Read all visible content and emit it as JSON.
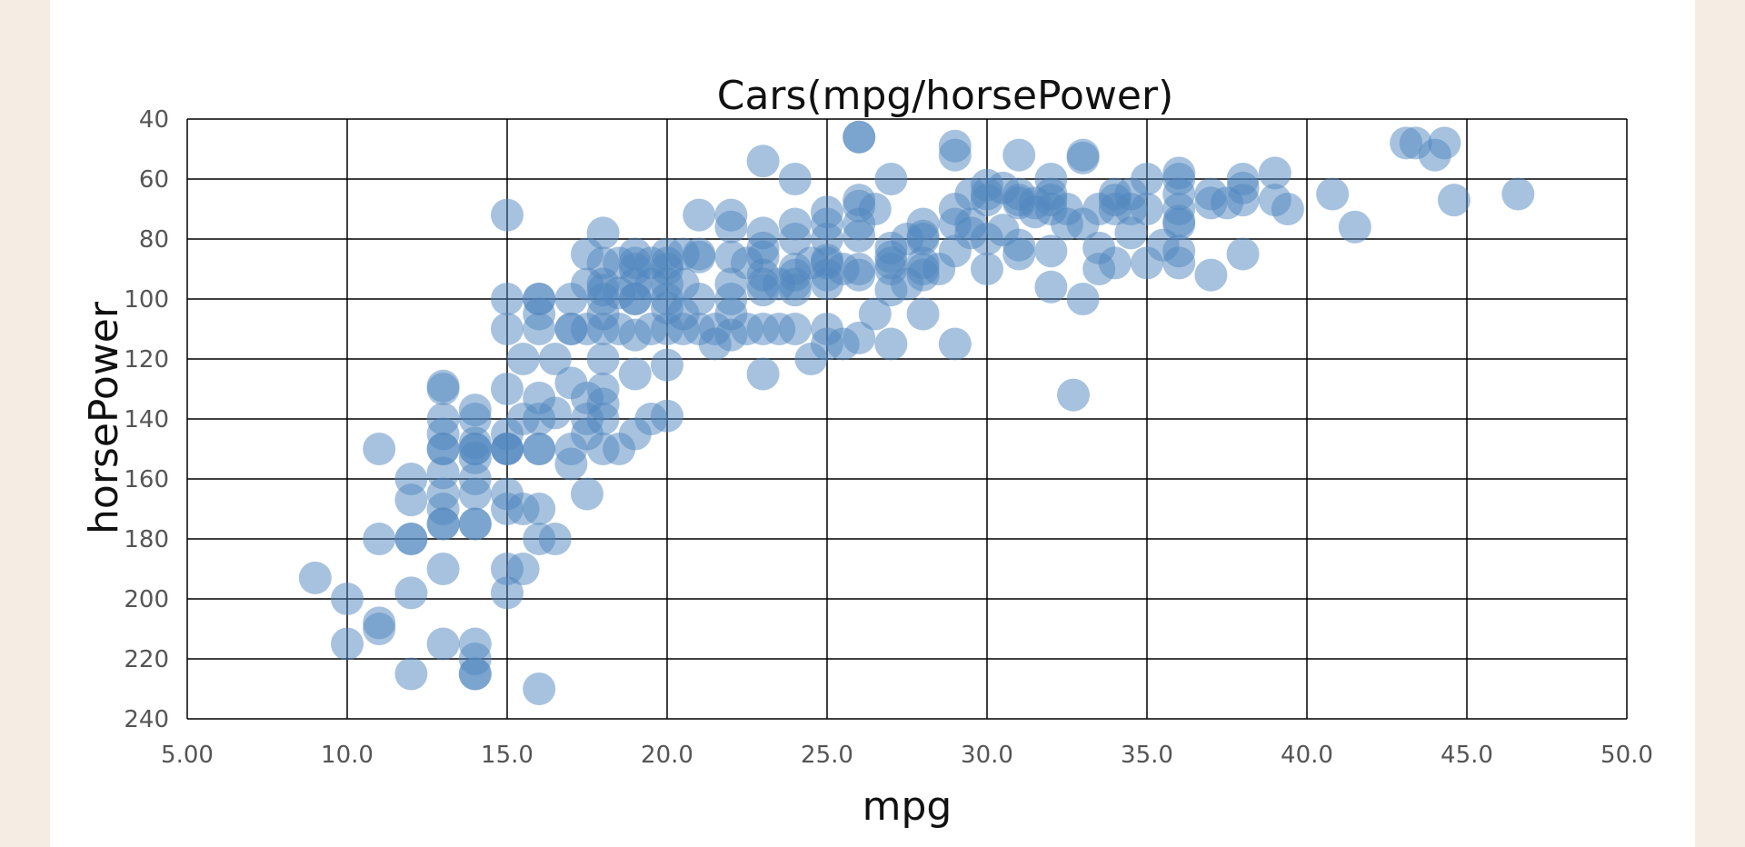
{
  "colors": {
    "background": "#f5ede3",
    "panel": "#ffffff",
    "point": "#4f86bd",
    "grid": "#000000"
  },
  "chart_data": {
    "type": "scatter",
    "title": "Cars(mpg/horsePower)",
    "xlabel": "mpg",
    "ylabel": "horsePower",
    "xlim": [
      5,
      50
    ],
    "ylim": [
      40,
      240
    ],
    "y_inverted": true,
    "grid": true,
    "legend": "none",
    "x_ticks": [
      "5.00",
      "10.0",
      "15.0",
      "20.0",
      "25.0",
      "30.0",
      "35.0",
      "40.0",
      "45.0",
      "50.0"
    ],
    "x_tick_values": [
      5,
      10,
      15,
      20,
      25,
      30,
      35,
      40,
      45,
      50
    ],
    "y_ticks": [
      "40",
      "60",
      "80",
      "100",
      "120",
      "140",
      "160",
      "180",
      "200",
      "220",
      "240"
    ],
    "y_tick_values": [
      40,
      60,
      80,
      100,
      120,
      140,
      160,
      180,
      200,
      220,
      240
    ],
    "points": [
      [
        9,
        193
      ],
      [
        10,
        200
      ],
      [
        10,
        215
      ],
      [
        11,
        150
      ],
      [
        11,
        180
      ],
      [
        11,
        208
      ],
      [
        11,
        210
      ],
      [
        12,
        160
      ],
      [
        12,
        167
      ],
      [
        12,
        180
      ],
      [
        12,
        180
      ],
      [
        12,
        198
      ],
      [
        12,
        225
      ],
      [
        13,
        129
      ],
      [
        13,
        130
      ],
      [
        13,
        140
      ],
      [
        13,
        145
      ],
      [
        13,
        150
      ],
      [
        13,
        150
      ],
      [
        13,
        158
      ],
      [
        13,
        165
      ],
      [
        13,
        170
      ],
      [
        13,
        175
      ],
      [
        13,
        175
      ],
      [
        13,
        190
      ],
      [
        13,
        215
      ],
      [
        14,
        137
      ],
      [
        14,
        140
      ],
      [
        14,
        148
      ],
      [
        14,
        150
      ],
      [
        14,
        150
      ],
      [
        14,
        153
      ],
      [
        14,
        160
      ],
      [
        14,
        165
      ],
      [
        14,
        175
      ],
      [
        14,
        175
      ],
      [
        14,
        215
      ],
      [
        14,
        220
      ],
      [
        14,
        225
      ],
      [
        14,
        225
      ],
      [
        15,
        72
      ],
      [
        15,
        100
      ],
      [
        15,
        110
      ],
      [
        15,
        130
      ],
      [
        15,
        145
      ],
      [
        15,
        150
      ],
      [
        15,
        150
      ],
      [
        15,
        150
      ],
      [
        15,
        165
      ],
      [
        15,
        170
      ],
      [
        15,
        190
      ],
      [
        15,
        198
      ],
      [
        15.5,
        120
      ],
      [
        15.5,
        140
      ],
      [
        15.5,
        170
      ],
      [
        15.5,
        190
      ],
      [
        16,
        100
      ],
      [
        16,
        100
      ],
      [
        16,
        105
      ],
      [
        16,
        110
      ],
      [
        16,
        133
      ],
      [
        16,
        140
      ],
      [
        16,
        150
      ],
      [
        16,
        150
      ],
      [
        16,
        170
      ],
      [
        16,
        180
      ],
      [
        16,
        230
      ],
      [
        16.5,
        120
      ],
      [
        16.5,
        138
      ],
      [
        16.5,
        180
      ],
      [
        17,
        100
      ],
      [
        17,
        110
      ],
      [
        17,
        110
      ],
      [
        17,
        128
      ],
      [
        17,
        150
      ],
      [
        17,
        155
      ],
      [
        17.5,
        85
      ],
      [
        17.5,
        95
      ],
      [
        17.5,
        110
      ],
      [
        17.5,
        133
      ],
      [
        17.5,
        140
      ],
      [
        17.5,
        145
      ],
      [
        17.5,
        165
      ],
      [
        18,
        78
      ],
      [
        18,
        88
      ],
      [
        18,
        95
      ],
      [
        18,
        97
      ],
      [
        18,
        100
      ],
      [
        18,
        105
      ],
      [
        18,
        110
      ],
      [
        18,
        120
      ],
      [
        18,
        130
      ],
      [
        18,
        135
      ],
      [
        18,
        140
      ],
      [
        18,
        150
      ],
      [
        18.5,
        88
      ],
      [
        18.5,
        98
      ],
      [
        18.5,
        110
      ],
      [
        18.5,
        150
      ],
      [
        19,
        85
      ],
      [
        19,
        88
      ],
      [
        19,
        90
      ],
      [
        19,
        95
      ],
      [
        19,
        100
      ],
      [
        19,
        100
      ],
      [
        19,
        112
      ],
      [
        19,
        125
      ],
      [
        19,
        145
      ],
      [
        19.5,
        88
      ],
      [
        19.5,
        95
      ],
      [
        19.5,
        110
      ],
      [
        19.5,
        140
      ],
      [
        20,
        85
      ],
      [
        20,
        88
      ],
      [
        20,
        90
      ],
      [
        20,
        95
      ],
      [
        20,
        100
      ],
      [
        20,
        103
      ],
      [
        20,
        110
      ],
      [
        20,
        122
      ],
      [
        20,
        139
      ],
      [
        20.5,
        85
      ],
      [
        20.5,
        95
      ],
      [
        20.5,
        105
      ],
      [
        20.5,
        110
      ],
      [
        21,
        72
      ],
      [
        21,
        85
      ],
      [
        21,
        86
      ],
      [
        21,
        100
      ],
      [
        21,
        110
      ],
      [
        21.5,
        110
      ],
      [
        21.5,
        115
      ],
      [
        22,
        72
      ],
      [
        22,
        76
      ],
      [
        22,
        86
      ],
      [
        22,
        95
      ],
      [
        22,
        100
      ],
      [
        22,
        105
      ],
      [
        22,
        112
      ],
      [
        22.5,
        88
      ],
      [
        22.5,
        110
      ],
      [
        23,
        54
      ],
      [
        23,
        78
      ],
      [
        23,
        83
      ],
      [
        23,
        86
      ],
      [
        23,
        92
      ],
      [
        23,
        95
      ],
      [
        23,
        97
      ],
      [
        23,
        110
      ],
      [
        23,
        125
      ],
      [
        23.5,
        95
      ],
      [
        23.5,
        110
      ],
      [
        24,
        60
      ],
      [
        24,
        75
      ],
      [
        24,
        80
      ],
      [
        24,
        90
      ],
      [
        24,
        92
      ],
      [
        24,
        95
      ],
      [
        24,
        97
      ],
      [
        24,
        110
      ],
      [
        24.5,
        88
      ],
      [
        24.5,
        120
      ],
      [
        25,
        71
      ],
      [
        25,
        75
      ],
      [
        25,
        80
      ],
      [
        25,
        87
      ],
      [
        25,
        88
      ],
      [
        25,
        92
      ],
      [
        25,
        95
      ],
      [
        25,
        110
      ],
      [
        25,
        115
      ],
      [
        25.5,
        90
      ],
      [
        25.5,
        115
      ],
      [
        26,
        46
      ],
      [
        26,
        46
      ],
      [
        26,
        67
      ],
      [
        26,
        69
      ],
      [
        26,
        75
      ],
      [
        26,
        79
      ],
      [
        26,
        90
      ],
      [
        26,
        92
      ],
      [
        26,
        113
      ],
      [
        26.5,
        70
      ],
      [
        26.5,
        105
      ],
      [
        27,
        60
      ],
      [
        27,
        83
      ],
      [
        27,
        86
      ],
      [
        27,
        88
      ],
      [
        27,
        90
      ],
      [
        27,
        97
      ],
      [
        27,
        115
      ],
      [
        27.5,
        80
      ],
      [
        27.5,
        95
      ],
      [
        28,
        75
      ],
      [
        28,
        79
      ],
      [
        28,
        80
      ],
      [
        28,
        88
      ],
      [
        28,
        90
      ],
      [
        28,
        92
      ],
      [
        28,
        105
      ],
      [
        28.5,
        90
      ],
      [
        29,
        49
      ],
      [
        29,
        52
      ],
      [
        29,
        70
      ],
      [
        29,
        75
      ],
      [
        29,
        84
      ],
      [
        29,
        115
      ],
      [
        29.5,
        65
      ],
      [
        29.5,
        75
      ],
      [
        29.5,
        78
      ],
      [
        30,
        62
      ],
      [
        30,
        65
      ],
      [
        30,
        67
      ],
      [
        30,
        80
      ],
      [
        30,
        90
      ],
      [
        30.5,
        63
      ],
      [
        30.5,
        77
      ],
      [
        31,
        52
      ],
      [
        31,
        65
      ],
      [
        31,
        67
      ],
      [
        31,
        68
      ],
      [
        31,
        82
      ],
      [
        31,
        85
      ],
      [
        31.5,
        68
      ],
      [
        31.5,
        71
      ],
      [
        32,
        60
      ],
      [
        32,
        65
      ],
      [
        32,
        67
      ],
      [
        32,
        70
      ],
      [
        32,
        84
      ],
      [
        32,
        96
      ],
      [
        32.5,
        70
      ],
      [
        32.5,
        75
      ],
      [
        33,
        52
      ],
      [
        33,
        53
      ],
      [
        33,
        75
      ],
      [
        33,
        100
      ],
      [
        32.7,
        132
      ],
      [
        33.5,
        70
      ],
      [
        33.5,
        83
      ],
      [
        33.5,
        90
      ],
      [
        34,
        65
      ],
      [
        34,
        67
      ],
      [
        34,
        70
      ],
      [
        34,
        88
      ],
      [
        34.5,
        65
      ],
      [
        34.5,
        70
      ],
      [
        34.5,
        78
      ],
      [
        35,
        60
      ],
      [
        35,
        70
      ],
      [
        35,
        88
      ],
      [
        35.5,
        82
      ],
      [
        36,
        58
      ],
      [
        36,
        60
      ],
      [
        36,
        65
      ],
      [
        36,
        70
      ],
      [
        36,
        74
      ],
      [
        36,
        75
      ],
      [
        36,
        84
      ],
      [
        36,
        88
      ],
      [
        37,
        65
      ],
      [
        37,
        68
      ],
      [
        37,
        92
      ],
      [
        37.5,
        68
      ],
      [
        38,
        60
      ],
      [
        38,
        63
      ],
      [
        38,
        67
      ],
      [
        38,
        85
      ],
      [
        39,
        58
      ],
      [
        39,
        67
      ],
      [
        39.4,
        70
      ],
      [
        40.8,
        65
      ],
      [
        41.5,
        76
      ],
      [
        43.1,
        48
      ],
      [
        43.4,
        48
      ],
      [
        44,
        52
      ],
      [
        44.3,
        48
      ],
      [
        44.6,
        67
      ],
      [
        46.6,
        65
      ]
    ]
  }
}
